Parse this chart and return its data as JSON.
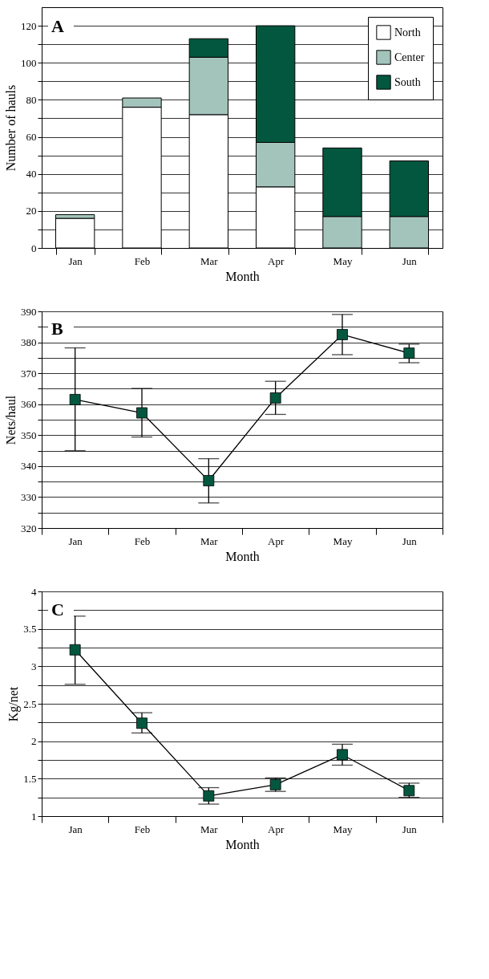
{
  "chart_data": [
    {
      "type": "bar",
      "title": "A",
      "xlabel": "Month",
      "ylabel": "Number of hauls",
      "categories": [
        "Jan",
        "Feb",
        "Mar",
        "Apr",
        "May",
        "Jun"
      ],
      "stacked": true,
      "series": [
        {
          "name": "North",
          "color": "#ffffff",
          "values": [
            16,
            76,
            72,
            33,
            0,
            0
          ]
        },
        {
          "name": "Center",
          "color": "#a3c4bb",
          "values": [
            2,
            5,
            31,
            24,
            17,
            17
          ]
        },
        {
          "name": "South",
          "color": "#03573f",
          "values": [
            0,
            0,
            10,
            63,
            37,
            30
          ]
        }
      ],
      "ylim": [
        0,
        130
      ],
      "yticks": [
        0,
        {
          "value": 10,
          "label": null
        },
        20,
        {
          "value": 30,
          "label": null
        },
        40,
        {
          "value": 50,
          "label": null
        },
        60,
        {
          "value": 70,
          "label": null
        },
        80,
        {
          "value": 90,
          "label": null
        },
        100,
        {
          "value": 110,
          "label": null
        },
        120
      ],
      "grid": "y",
      "legend": "top right"
    },
    {
      "type": "line",
      "title": "B",
      "xlabel": "Month",
      "ylabel": "Nets/haul",
      "categories": [
        "Jan",
        "Feb",
        "Mar",
        "Apr",
        "May",
        "Jun"
      ],
      "series": [
        {
          "color": "#03573f",
          "values": [
            361.5,
            357.2,
            335.3,
            362,
            382.5,
            376.5
          ],
          "errors": [
            [
              345,
              378.2
            ],
            [
              349.4,
              365.1
            ],
            [
              328.1,
              342.4
            ],
            [
              356.7,
              367.4
            ],
            [
              376,
              389
            ],
            [
              373.4,
              379.4
            ]
          ]
        }
      ],
      "ylim": [
        320,
        390
      ],
      "yticks": [
        320,
        {
          "value": 325,
          "label": null
        },
        330,
        {
          "value": 335,
          "label": null
        },
        340,
        {
          "value": 345,
          "label": null
        },
        350,
        {
          "value": 355,
          "label": null
        },
        360,
        {
          "value": 365,
          "label": null
        },
        370,
        {
          "value": 375,
          "label": null
        },
        380,
        {
          "value": 385,
          "label": null
        },
        390
      ],
      "grid": "y",
      "marker": "square",
      "line_style": "solid"
    },
    {
      "type": "line",
      "title": "C",
      "xlabel": "Month",
      "ylabel": "Kg/net",
      "categories": [
        "Jan",
        "Feb",
        "Mar",
        "Apr",
        "May",
        "Jun"
      ],
      "series": [
        {
          "color": "#03573f",
          "values": [
            3.22,
            2.24,
            1.27,
            1.42,
            1.82,
            1.34
          ],
          "errors": [
            [
              2.76,
              3.67
            ],
            [
              2.11,
              2.38
            ],
            [
              1.16,
              1.38
            ],
            [
              1.33,
              1.51
            ],
            [
              1.68,
              1.96
            ],
            [
              1.25,
              1.44
            ]
          ]
        }
      ],
      "ylim": [
        1,
        4
      ],
      "yticks": [
        1,
        {
          "value": 1.25,
          "label": null
        },
        1.5,
        {
          "value": 1.75,
          "label": null
        },
        2,
        {
          "value": 2.25,
          "label": null
        },
        2.5,
        {
          "value": 2.75,
          "label": null
        },
        3,
        {
          "value": 3.25,
          "label": null
        },
        3.5,
        {
          "value": 3.75,
          "label": null
        },
        4
      ],
      "grid": "y",
      "marker": "square",
      "line_style": "solid"
    }
  ]
}
